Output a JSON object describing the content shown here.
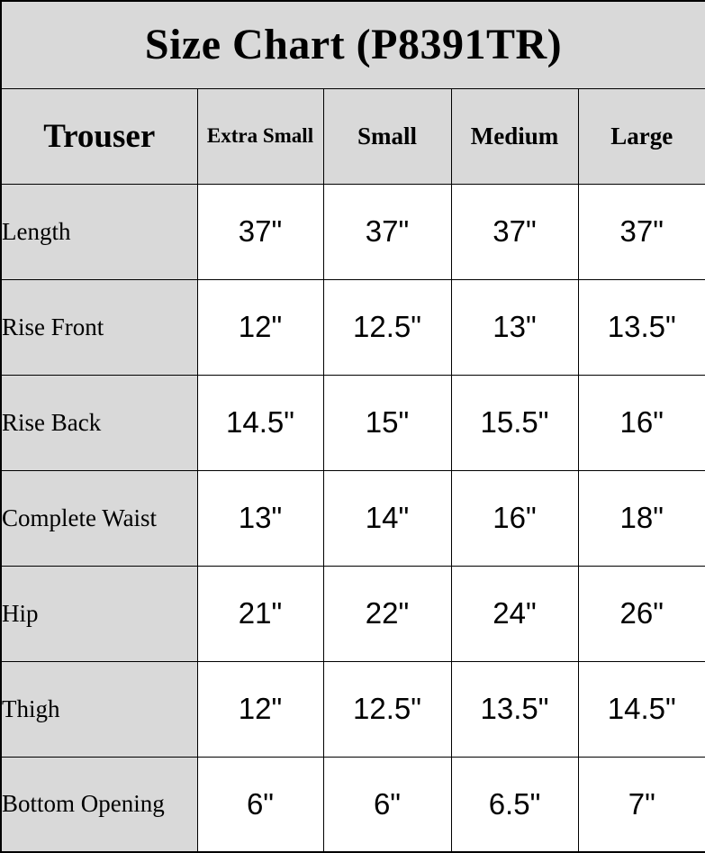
{
  "colors": {
    "header_bg": "#d9d9d9",
    "cell_bg": "#ffffff",
    "border": "#000000",
    "text": "#000000"
  },
  "chart_data": {
    "type": "table",
    "title": "Size Chart (P8391TR)",
    "columns": [
      "Trouser",
      "Extra Small",
      "Small",
      "Medium",
      "Large"
    ],
    "rows": [
      [
        "Length",
        "37\"",
        "37\"",
        "37\"",
        "37\""
      ],
      [
        "Rise Front",
        "12\"",
        "12.5\"",
        "13\"",
        "13.5\""
      ],
      [
        "Rise Back",
        "14.5\"",
        "15\"",
        "15.5\"",
        "16\""
      ],
      [
        "Complete Waist",
        "13\"",
        "14\"",
        "16\"",
        "18\""
      ],
      [
        "Hip",
        "21\"",
        "22\"",
        "24\"",
        "26\""
      ],
      [
        "Thigh",
        "12\"",
        "12.5\"",
        "13.5\"",
        "14.5\""
      ],
      [
        "Bottom Opening",
        "6\"",
        "6\"",
        "6.5\"",
        "7\""
      ]
    ]
  }
}
